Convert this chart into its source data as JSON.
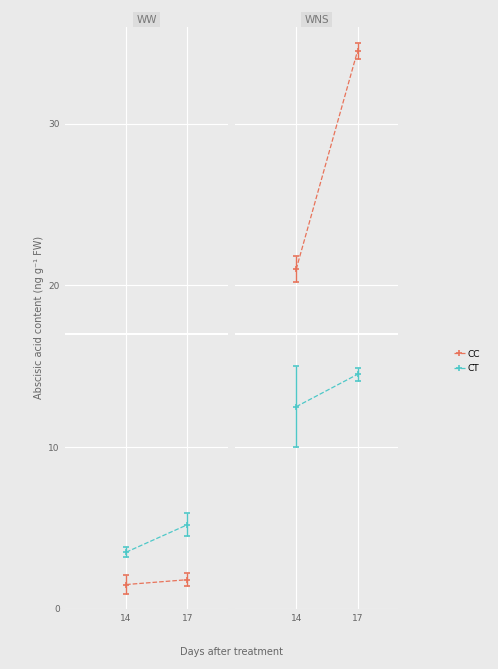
{
  "panels": [
    "WW",
    "WNS"
  ],
  "panel_x": {
    "WW": [
      14,
      17
    ],
    "WNS": [
      14,
      17
    ]
  },
  "xlim": {
    "WW": [
      11,
      19
    ],
    "WNS": [
      11,
      19
    ]
  },
  "xticks": {
    "WW": [
      14,
      17
    ],
    "WNS": [
      14,
      17
    ]
  },
  "xticklabels": {
    "WW": [
      "14",
      "17"
    ],
    "WNS": [
      "14",
      "17"
    ]
  },
  "ylim": [
    0,
    36
  ],
  "yticks": [
    0,
    10,
    20,
    30
  ],
  "yticklabels": [
    "0",
    "10",
    "20",
    "30"
  ],
  "ylabel": "Abscisic acid content (ng g⁻¹ FW)",
  "xlabel": "Days after treatment",
  "hline_y": 17,
  "series": {
    "CC": {
      "color": "#E8735A",
      "linestyle": "--",
      "marker": "+",
      "label": "CC",
      "WW": {
        "y": [
          1.5,
          1.8
        ],
        "yerr": [
          0.6,
          0.4
        ]
      },
      "WNS": {
        "y": [
          21.0,
          34.5
        ],
        "yerr": [
          0.8,
          0.5
        ]
      }
    },
    "CT": {
      "color": "#4EC8C8",
      "linestyle": "--",
      "marker": "+",
      "label": "CT",
      "WW": {
        "y": [
          3.5,
          5.2
        ],
        "yerr": [
          0.3,
          0.7
        ]
      },
      "WNS": {
        "y": [
          12.5,
          14.5
        ],
        "yerr": [
          2.5,
          0.4
        ]
      }
    }
  },
  "background_color": "#EAEAEA",
  "panel_header_color": "#DCDCDC",
  "panel_label_color": "#777777",
  "grid_color": "#FFFFFF",
  "hline_color": "#FFFFFF",
  "title_fontsize": 7.5,
  "axis_fontsize": 7,
  "tick_fontsize": 6.5,
  "legend_fontsize": 6.5
}
